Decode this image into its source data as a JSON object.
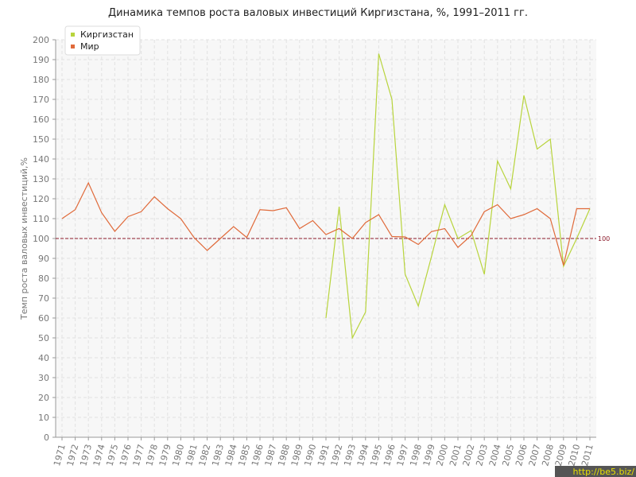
{
  "chart_data": {
    "type": "line",
    "title": "Динамика темпов роста валовых инвестиций Киргизстана, %, 1991–2011 гг.",
    "y_label": "Темп роста валовых инвестиций,%",
    "categories": [
      "1971",
      "1972",
      "1973",
      "1974",
      "1975",
      "1976",
      "1977",
      "1978",
      "1979",
      "1980",
      "1981",
      "1982",
      "1983",
      "1984",
      "1985",
      "1986",
      "1987",
      "1988",
      "1989",
      "1990",
      "1991",
      "1992",
      "1993",
      "1994",
      "1995",
      "1996",
      "1997",
      "1998",
      "1999",
      "2000",
      "2001",
      "2002",
      "2003",
      "2004",
      "2005",
      "2006",
      "2007",
      "2008",
      "2009",
      "2010",
      "2011"
    ],
    "series": [
      {
        "name": "Киргизстан",
        "color": "#b8d43c",
        "values": [
          null,
          null,
          null,
          null,
          null,
          null,
          null,
          null,
          null,
          null,
          null,
          null,
          null,
          null,
          null,
          null,
          null,
          null,
          null,
          null,
          60,
          116,
          50,
          63,
          193,
          170,
          82,
          66,
          91,
          117,
          100,
          104,
          82,
          139,
          125,
          172,
          145,
          150,
          86,
          100,
          115
        ]
      },
      {
        "name": "Мир",
        "color": "#e06a3a",
        "values": [
          110,
          114.5,
          128,
          113,
          103.6,
          111,
          113.5,
          121,
          115,
          110,
          100.5,
          94,
          100,
          106,
          100.5,
          114.5,
          114,
          115.5,
          105,
          109,
          102,
          105,
          100,
          108,
          112,
          101,
          100.8,
          97,
          103.5,
          105,
          95.5,
          101.5,
          113.5,
          117,
          110,
          112,
          115,
          110,
          86.5,
          115,
          115
        ]
      }
    ],
    "ylim": [
      0,
      200
    ],
    "yticks": [
      0,
      10,
      20,
      30,
      40,
      50,
      60,
      70,
      80,
      90,
      100,
      110,
      120,
      130,
      140,
      150,
      160,
      170,
      180,
      190,
      200
    ],
    "reference_line": 100,
    "reference_color": "#8b1a2a",
    "grid": true,
    "legend": "top-left",
    "watermark": "http://be5.biz/"
  }
}
